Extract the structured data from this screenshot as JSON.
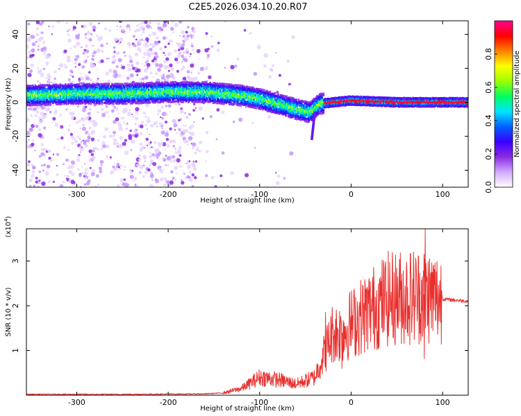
{
  "title": "C2E5.2026.034.10.20.R07",
  "chart_data": [
    {
      "type": "heatmap",
      "name": "spectrogram",
      "xlabel": "Height of straight line (km)",
      "ylabel": "Frequency (Hz)",
      "xlim": [
        -355,
        128
      ],
      "ylim": [
        -50,
        48
      ],
      "x_ticks": [
        -300,
        -200,
        -100,
        0,
        100
      ],
      "y_ticks": [
        -40,
        -20,
        0,
        20,
        40
      ],
      "colorbar": {
        "label": "Normalized spectral amplitude",
        "range": [
          0.0,
          1.0
        ],
        "ticks": [
          0.0,
          0.2,
          0.4,
          0.6,
          0.8
        ],
        "tick_labels": [
          "0.0",
          "0.2",
          "0.4",
          "0.6",
          "0.8"
        ],
        "colormap": [
          "#ffffff",
          "#d2aaff",
          "#8a2be2",
          "#3a00ff",
          "#0060ff",
          "#00e5ff",
          "#00ff60",
          "#9aff00",
          "#ffff00",
          "#ff8000",
          "#ff0000",
          "#ff0090"
        ]
      },
      "ridge": [
        {
          "x": -355,
          "y": 4
        },
        {
          "x": -300,
          "y": 5
        },
        {
          "x": -250,
          "y": 5
        },
        {
          "x": -200,
          "y": 6
        },
        {
          "x": -160,
          "y": 6
        },
        {
          "x": -120,
          "y": 4
        },
        {
          "x": -100,
          "y": 2
        },
        {
          "x": -80,
          "y": -1
        },
        {
          "x": -60,
          "y": -4
        },
        {
          "x": -45,
          "y": -6
        },
        {
          "x": -35,
          "y": -1
        },
        {
          "x": -20,
          "y": 0
        },
        {
          "x": 0,
          "y": 1
        },
        {
          "x": 50,
          "y": 0
        },
        {
          "x": 100,
          "y": 0
        },
        {
          "x": 128,
          "y": 0
        }
      ]
    },
    {
      "type": "line",
      "name": "snr",
      "xlabel": "Height of straight line (km)",
      "ylabel": "SNR (10 * v/v)",
      "y_multiplier": "(x10",
      "y_multiplier_exp": "4",
      "y_multiplier_close": ")",
      "xlim": [
        -355,
        128
      ],
      "ylim": [
        0,
        3.72
      ],
      "x_ticks": [
        -300,
        -200,
        -100,
        0,
        100
      ],
      "y_ticks": [
        1,
        2,
        3
      ],
      "color": "#e8302e",
      "envelope": [
        {
          "x": -355,
          "y": 0.02
        },
        {
          "x": -250,
          "y": 0.02
        },
        {
          "x": -160,
          "y": 0.03
        },
        {
          "x": -140,
          "y": 0.05
        },
        {
          "x": -120,
          "y": 0.15
        },
        {
          "x": -100,
          "y": 0.4
        },
        {
          "x": -80,
          "y": 0.35
        },
        {
          "x": -60,
          "y": 0.25
        },
        {
          "x": -40,
          "y": 0.4
        },
        {
          "x": -30,
          "y": 0.9
        },
        {
          "x": -20,
          "y": 1.4
        },
        {
          "x": -10,
          "y": 1.4
        },
        {
          "x": 0,
          "y": 1.6
        },
        {
          "x": 20,
          "y": 1.9
        },
        {
          "x": 40,
          "y": 2.15
        },
        {
          "x": 60,
          "y": 2.2
        },
        {
          "x": 80,
          "y": 2.25
        },
        {
          "x": 100,
          "y": 2.15
        },
        {
          "x": 128,
          "y": 2.1
        }
      ],
      "spikes": [
        {
          "x": 81,
          "y": 3.72
        },
        {
          "x": 53,
          "y": 2.6
        },
        {
          "x": 75,
          "y": 2.5
        },
        {
          "x": 80,
          "y": 0.82
        },
        {
          "x": -28,
          "y": 1.85
        },
        {
          "x": -10,
          "y": 0.6
        }
      ]
    }
  ]
}
